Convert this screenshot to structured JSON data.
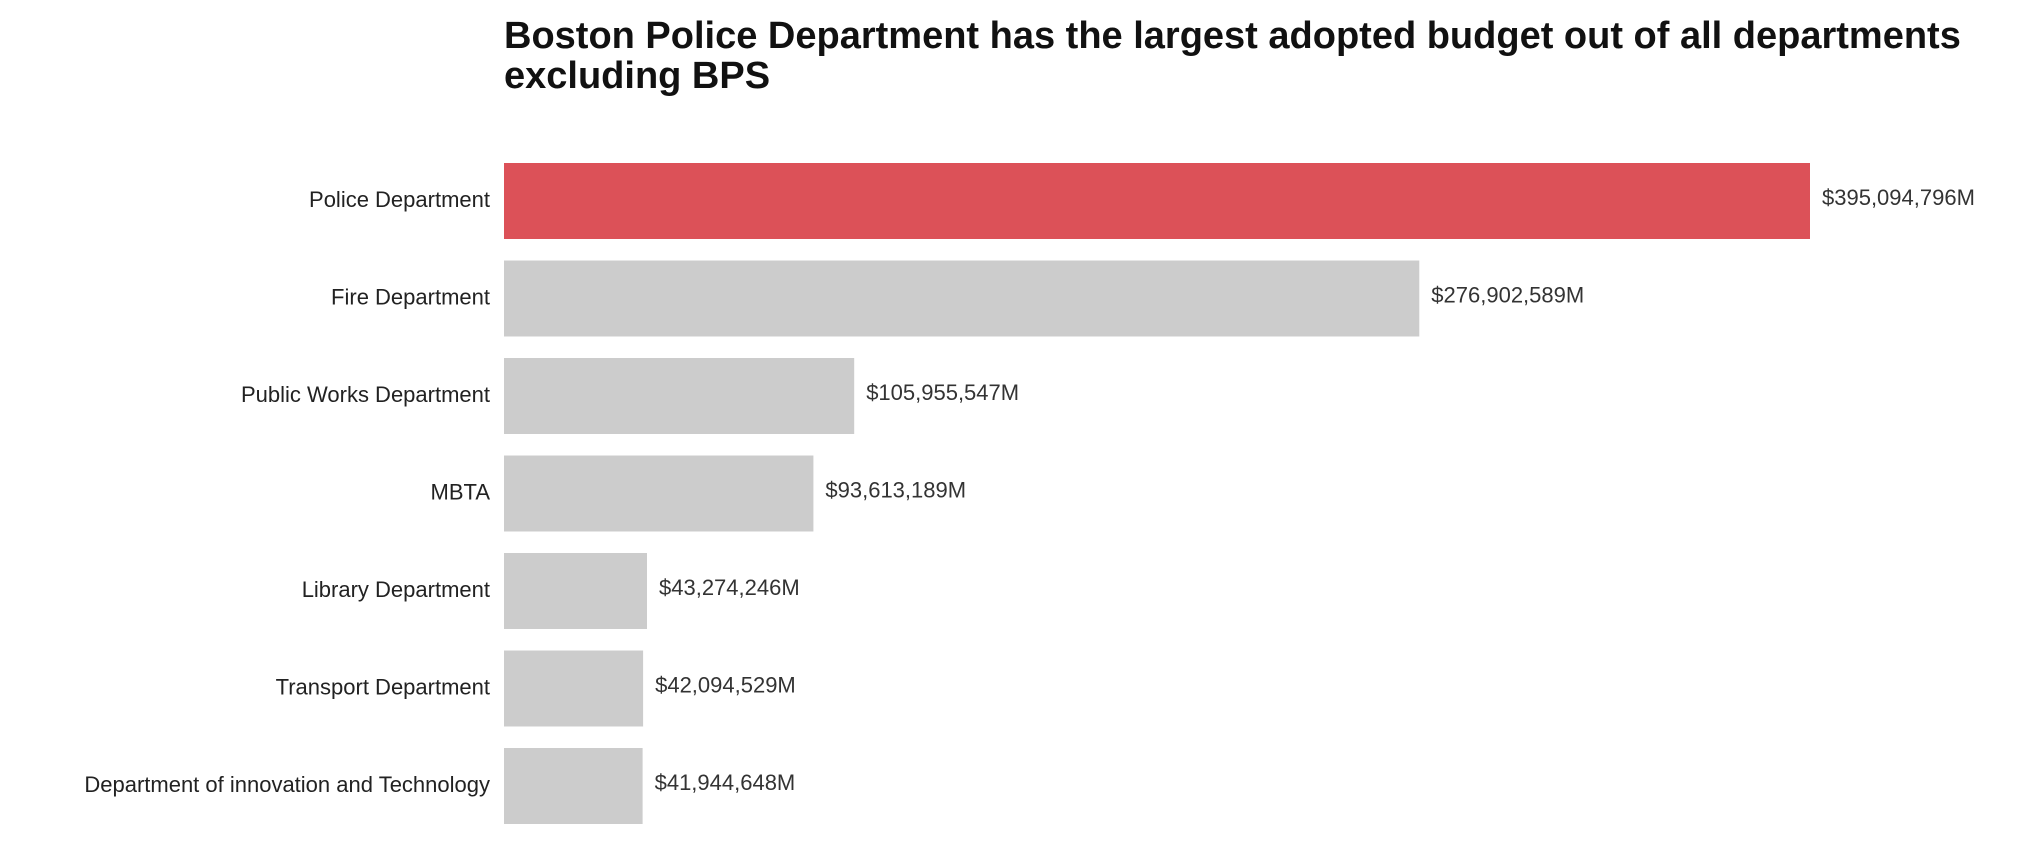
{
  "chart_data": {
    "type": "bar",
    "orientation": "horizontal",
    "title": "Boston Police Department has the largest adopted budget out of all departments excluding BPS",
    "xlabel": "",
    "ylabel": "",
    "categories": [
      "Police Department",
      "Fire Department",
      "Public Works Department",
      "MBTA",
      "Library Department",
      "Transport Department",
      "Department of innovation and Technology"
    ],
    "values": [
      395094796,
      276902589,
      105955547,
      93613189,
      43274246,
      42094529,
      41944648
    ],
    "value_labels": [
      "$395,094,796M",
      "$276,902,589M",
      "$105,955,547M",
      "$93,613,189M",
      "$43,274,246M",
      "$42,094,529M",
      "$41,944,648M"
    ],
    "highlight_index": 0,
    "xlim": [
      0,
      395094796
    ],
    "grid": false,
    "colors": {
      "highlight": "#dc5158",
      "default": "#cccccc"
    }
  }
}
